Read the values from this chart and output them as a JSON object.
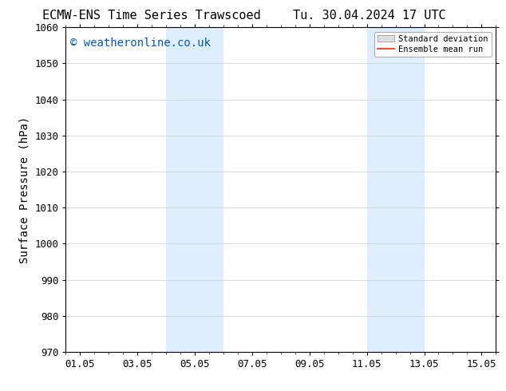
{
  "title_left": "ECMW-ENS Time Series Trawscoed",
  "title_right": "Tu. 30.04.2024 17 UTC",
  "ylabel": "Surface Pressure (hPa)",
  "ylim": [
    970,
    1060
  ],
  "yticks": [
    970,
    980,
    990,
    1000,
    1010,
    1020,
    1030,
    1040,
    1050,
    1060
  ],
  "xtick_labels": [
    "01.05",
    "03.05",
    "05.05",
    "07.05",
    "09.05",
    "11.05",
    "13.05",
    "15.05"
  ],
  "xtick_values": [
    0,
    2,
    4,
    6,
    8,
    10,
    12,
    14
  ],
  "xlim": [
    -0.5,
    14.5
  ],
  "shaded_bands": [
    {
      "x_start": 3.0,
      "x_end": 5.0
    },
    {
      "x_start": 10.0,
      "x_end": 12.0
    }
  ],
  "shade_color": "#ddeeff",
  "watermark_text": "© weatheronline.co.uk",
  "watermark_color": "#0055cc",
  "legend_std_color": "#e0e0e0",
  "legend_mean_color": "#ff2200",
  "bg_color": "#ffffff",
  "title_fontsize": 11,
  "axis_fontsize": 10,
  "tick_fontsize": 9,
  "watermark_fontsize": 10
}
